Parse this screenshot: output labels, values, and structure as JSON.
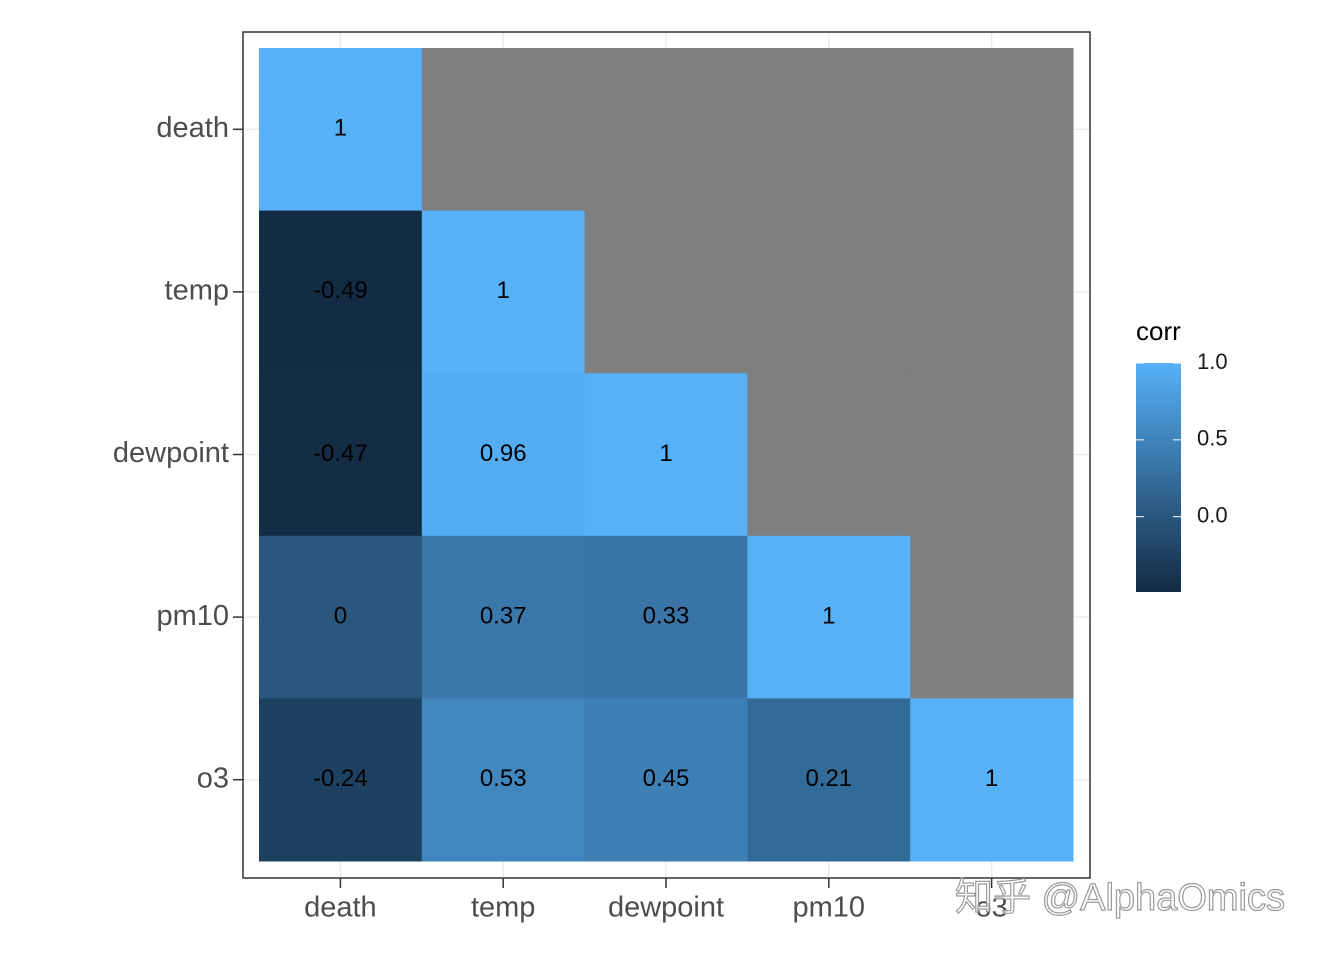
{
  "chart_data": {
    "type": "heatmap",
    "x_categories": [
      "death",
      "temp",
      "dewpoint",
      "pm10",
      "o3"
    ],
    "y_categories": [
      "death",
      "temp",
      "dewpoint",
      "pm10",
      "o3"
    ],
    "values": [
      [
        1,
        null,
        null,
        null,
        null
      ],
      [
        -0.49,
        1,
        null,
        null,
        null
      ],
      [
        -0.47,
        0.96,
        1,
        null,
        null
      ],
      [
        0,
        0.37,
        0.33,
        1,
        null
      ],
      [
        -0.24,
        0.53,
        0.45,
        0.21,
        1
      ]
    ],
    "legend_title": "corr",
    "colorlim": [
      -0.49,
      1
    ],
    "colorticks": [
      {
        "value": 0,
        "label": "0.0"
      },
      0.5,
      {
        "value": 1,
        "label": "1.0"
      }
    ],
    "low_color": "#132B43",
    "high_color": "#56B1F7",
    "na_color": "#7f7f7f",
    "grid": true,
    "watermark": "知乎 @AlphaOmics"
  }
}
